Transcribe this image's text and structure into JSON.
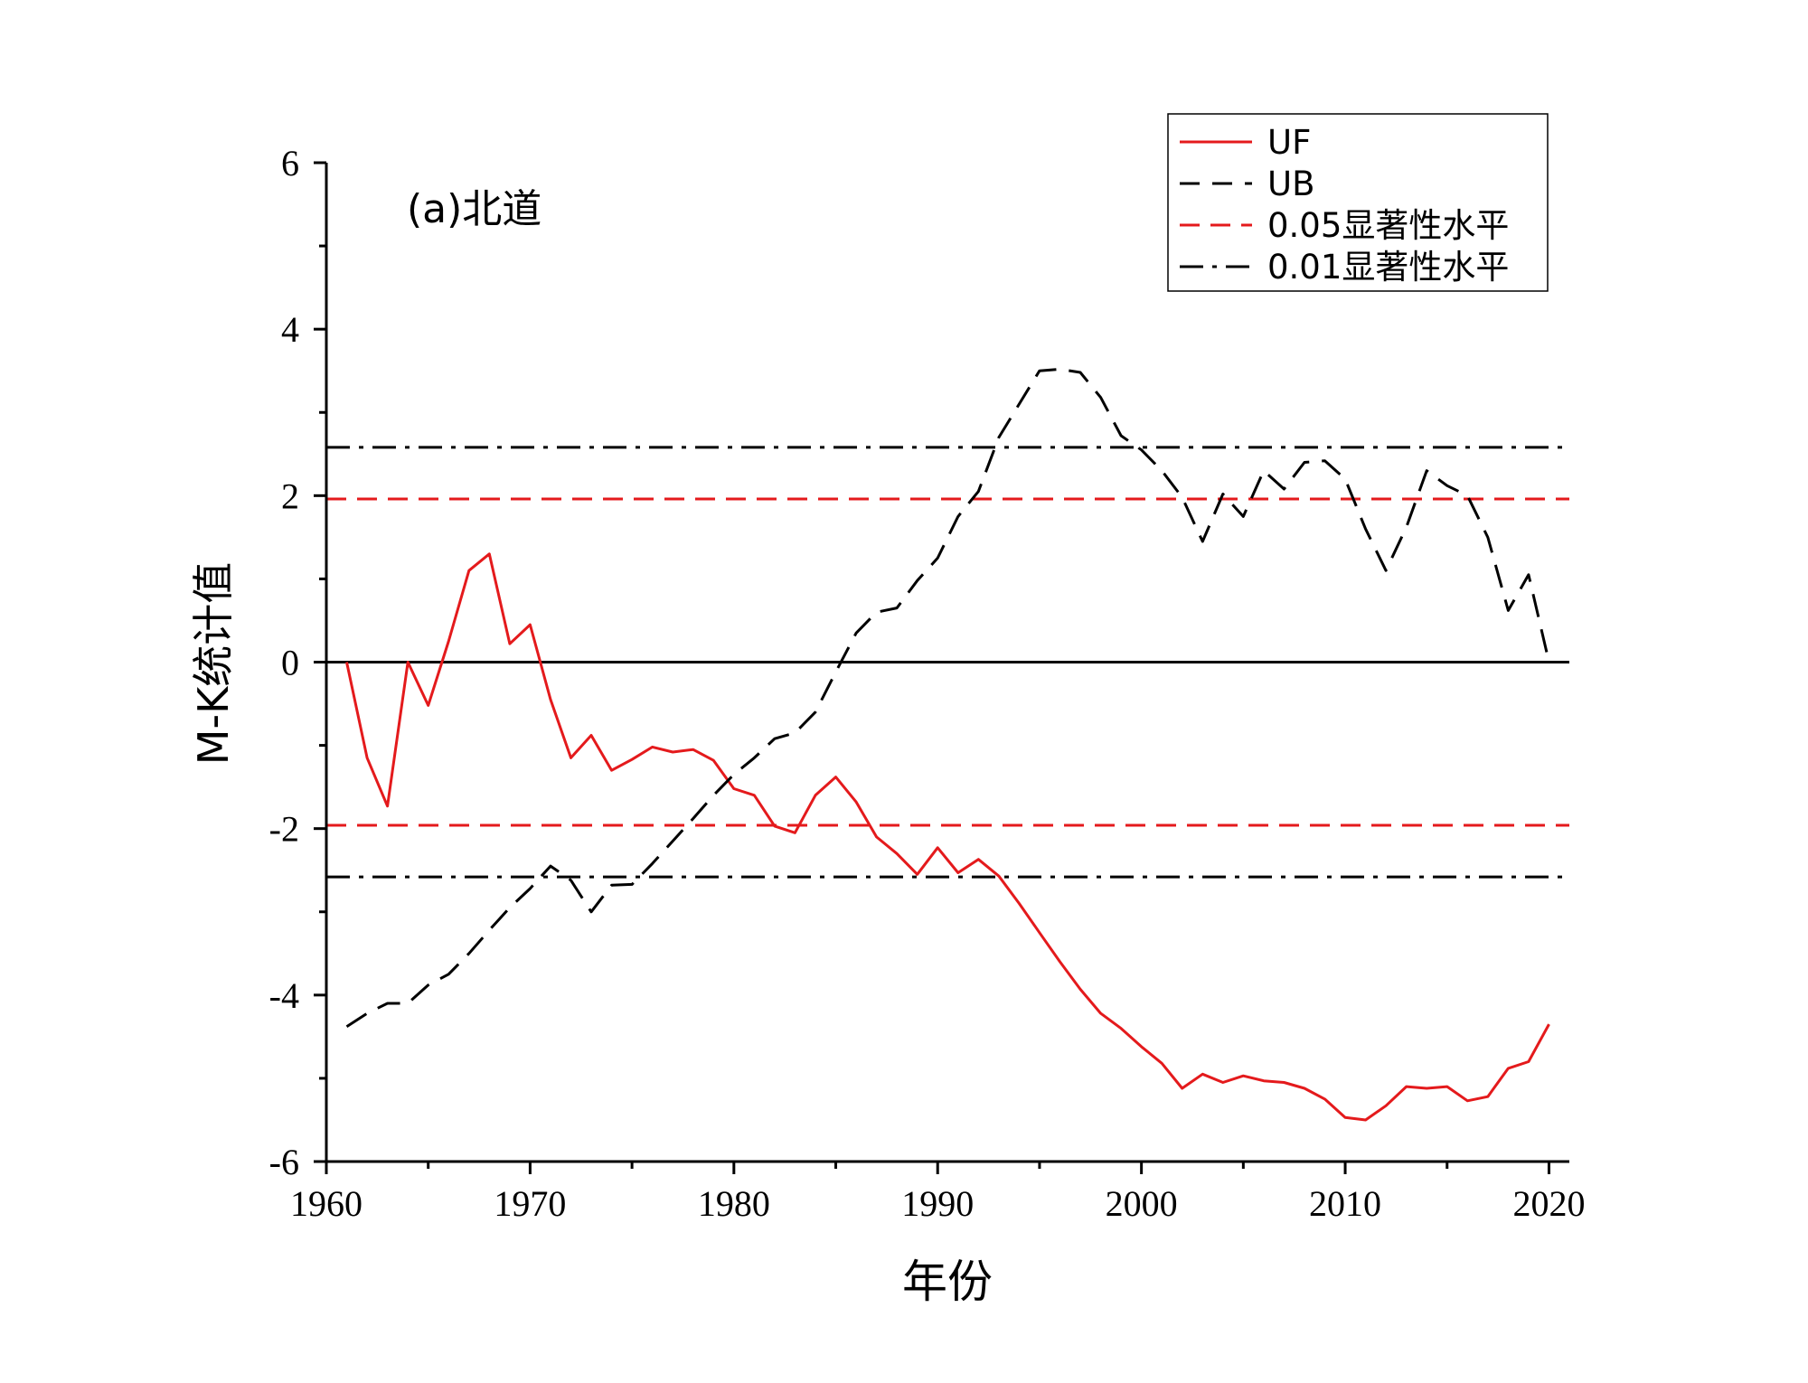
{
  "chart_data": {
    "type": "line",
    "annotation": "(a)北道",
    "xlabel": "年份",
    "ylabel": "M-K统计值",
    "xlim": [
      1960,
      2021
    ],
    "ylim": [
      -6,
      6
    ],
    "xticks": [
      1960,
      1970,
      1980,
      1990,
      2000,
      2010,
      2020
    ],
    "yticks": [
      -6,
      -4,
      -2,
      0,
      2,
      4,
      6
    ],
    "legend_position": "top-right",
    "series": [
      {
        "name": "UF",
        "style": "solid",
        "color": "#e41a1c",
        "x": [
          1961,
          1962,
          1963,
          1964,
          1965,
          1966,
          1967,
          1968,
          1969,
          1970,
          1971,
          1972,
          1973,
          1974,
          1975,
          1976,
          1977,
          1978,
          1979,
          1980,
          1981,
          1982,
          1983,
          1984,
          1985,
          1986,
          1987,
          1988,
          1989,
          1990,
          1991,
          1992,
          1993,
          1994,
          1995,
          1996,
          1997,
          1998,
          1999,
          2000,
          2001,
          2002,
          2003,
          2004,
          2005,
          2006,
          2007,
          2008,
          2009,
          2010,
          2011,
          2012,
          2013,
          2014,
          2015,
          2016,
          2017,
          2018,
          2019,
          2020
        ],
        "y": [
          0.0,
          -1.15,
          -1.73,
          0.0,
          -0.52,
          0.25,
          1.1,
          1.3,
          0.22,
          0.45,
          -0.45,
          -1.15,
          -0.88,
          -1.3,
          -1.17,
          -1.02,
          -1.08,
          -1.05,
          -1.18,
          -1.52,
          -1.6,
          -1.97,
          -2.05,
          -1.6,
          -1.38,
          -1.68,
          -2.1,
          -2.3,
          -2.55,
          -2.23,
          -2.53,
          -2.37,
          -2.57,
          -2.9,
          -3.25,
          -3.6,
          -3.93,
          -4.22,
          -4.4,
          -4.62,
          -4.82,
          -5.12,
          -4.95,
          -5.05,
          -4.97,
          -5.03,
          -5.05,
          -5.12,
          -5.25,
          -5.47,
          -5.5,
          -5.33,
          -5.1,
          -5.12,
          -5.1,
          -5.27,
          -5.22,
          -4.88,
          -4.8,
          -4.35
        ]
      },
      {
        "name": "UB",
        "style": "dashed",
        "color": "#000000",
        "x": [
          1961,
          1962,
          1963,
          1964,
          1965,
          1966,
          1967,
          1968,
          1969,
          1970,
          1971,
          1972,
          1973,
          1974,
          1975,
          1976,
          1977,
          1978,
          1979,
          1980,
          1981,
          1982,
          1983,
          1984,
          1985,
          1986,
          1987,
          1988,
          1989,
          1990,
          1991,
          1992,
          1993,
          1994,
          1995,
          1996,
          1997,
          1998,
          1999,
          2000,
          2001,
          2002,
          2003,
          2004,
          2005,
          2006,
          2007,
          2008,
          2009,
          2010,
          2011,
          2012,
          2013,
          2014,
          2015,
          2016,
          2017,
          2018,
          2019,
          2020
        ],
        "y": [
          -4.38,
          -4.22,
          -4.1,
          -4.1,
          -3.88,
          -3.75,
          -3.5,
          -3.22,
          -2.95,
          -2.72,
          -2.45,
          -2.62,
          -3.0,
          -2.68,
          -2.67,
          -2.42,
          -2.15,
          -1.88,
          -1.6,
          -1.35,
          -1.15,
          -0.92,
          -0.85,
          -0.6,
          -0.12,
          0.35,
          0.6,
          0.65,
          0.98,
          1.25,
          1.75,
          2.05,
          2.7,
          3.1,
          3.5,
          3.52,
          3.48,
          3.18,
          2.72,
          2.55,
          2.3,
          1.98,
          1.45,
          2.02,
          1.75,
          2.3,
          2.08,
          2.4,
          2.42,
          2.2,
          1.6,
          1.1,
          1.62,
          2.3,
          2.12,
          2.0,
          1.5,
          0.62,
          1.05,
          0.0
        ]
      },
      {
        "name": "0.05显著性水平",
        "style": "dashed-threshold",
        "color": "#e41a1c",
        "levels": [
          1.96,
          -1.96
        ]
      },
      {
        "name": "0.01显著性水平",
        "style": "dashdot-threshold",
        "color": "#000000",
        "levels": [
          2.58,
          -2.58
        ]
      }
    ],
    "reference_line": {
      "y": 0,
      "color": "#000000"
    }
  }
}
